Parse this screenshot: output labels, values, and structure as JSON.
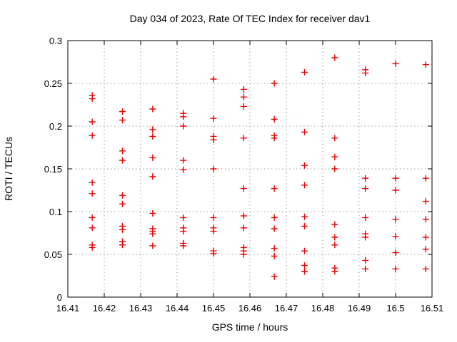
{
  "chart_data": {
    "type": "scatter",
    "title": "Day 034 of 2023, Rate Of TEC Index for receiver dav1",
    "xlabel": "GPS time / hours",
    "ylabel": "ROTI / TECUs",
    "xlim": [
      16.41,
      16.51
    ],
    "ylim": [
      0,
      0.3
    ],
    "grid": true,
    "legend": "none",
    "marker_shape": "plus",
    "marker_color": "#ee0000",
    "grid_color": "#9e9e9e",
    "axis_color": "#000000",
    "x_ticks": [
      {
        "v": 16.41,
        "label": "16.41"
      },
      {
        "v": 16.42,
        "label": "16.42"
      },
      {
        "v": 16.43,
        "label": "16.43"
      },
      {
        "v": 16.44,
        "label": "16.44"
      },
      {
        "v": 16.45,
        "label": "16.45"
      },
      {
        "v": 16.46,
        "label": "16.46"
      },
      {
        "v": 16.47,
        "label": "16.47"
      },
      {
        "v": 16.48,
        "label": "16.48"
      },
      {
        "v": 16.49,
        "label": "16.49"
      },
      {
        "v": 16.5,
        "label": "16.5"
      },
      {
        "v": 16.51,
        "label": "16.51"
      }
    ],
    "y_ticks": [
      {
        "v": 0,
        "label": "0"
      },
      {
        "v": 0.05,
        "label": "0.05"
      },
      {
        "v": 0.1,
        "label": "0.1"
      },
      {
        "v": 0.15,
        "label": "0.15"
      },
      {
        "v": 0.2,
        "label": "0.2"
      },
      {
        "v": 0.25,
        "label": "0.25"
      },
      {
        "v": 0.3,
        "label": "0.3"
      }
    ],
    "series": [
      {
        "name": "ROTI",
        "points": [
          [
            16.4167,
            0.236
          ],
          [
            16.4167,
            0.232
          ],
          [
            16.4167,
            0.205
          ],
          [
            16.4167,
            0.189
          ],
          [
            16.4167,
            0.134
          ],
          [
            16.4167,
            0.121
          ],
          [
            16.4167,
            0.093
          ],
          [
            16.4167,
            0.081
          ],
          [
            16.4167,
            0.061
          ],
          [
            16.4167,
            0.058
          ],
          [
            16.425,
            0.217
          ],
          [
            16.425,
            0.207
          ],
          [
            16.425,
            0.171
          ],
          [
            16.425,
            0.16
          ],
          [
            16.425,
            0.119
          ],
          [
            16.425,
            0.109
          ],
          [
            16.425,
            0.083
          ],
          [
            16.425,
            0.079
          ],
          [
            16.425,
            0.065
          ],
          [
            16.425,
            0.061
          ],
          [
            16.4333,
            0.22
          ],
          [
            16.4333,
            0.196
          ],
          [
            16.4333,
            0.188
          ],
          [
            16.4333,
            0.163
          ],
          [
            16.4333,
            0.141
          ],
          [
            16.4333,
            0.098
          ],
          [
            16.4333,
            0.08
          ],
          [
            16.4333,
            0.077
          ],
          [
            16.4333,
            0.074
          ],
          [
            16.4333,
            0.06
          ],
          [
            16.4417,
            0.215
          ],
          [
            16.4417,
            0.211
          ],
          [
            16.4417,
            0.2
          ],
          [
            16.4417,
            0.16
          ],
          [
            16.4417,
            0.149
          ],
          [
            16.4417,
            0.093
          ],
          [
            16.4417,
            0.081
          ],
          [
            16.4417,
            0.077
          ],
          [
            16.4417,
            0.063
          ],
          [
            16.4417,
            0.06
          ],
          [
            16.45,
            0.255
          ],
          [
            16.45,
            0.209
          ],
          [
            16.45,
            0.188
          ],
          [
            16.45,
            0.184
          ],
          [
            16.45,
            0.15
          ],
          [
            16.45,
            0.093
          ],
          [
            16.45,
            0.081
          ],
          [
            16.45,
            0.077
          ],
          [
            16.45,
            0.054
          ],
          [
            16.45,
            0.051
          ],
          [
            16.4583,
            0.243
          ],
          [
            16.4583,
            0.234
          ],
          [
            16.4583,
            0.223
          ],
          [
            16.4583,
            0.186
          ],
          [
            16.4583,
            0.127
          ],
          [
            16.4583,
            0.095
          ],
          [
            16.4583,
            0.081
          ],
          [
            16.4583,
            0.058
          ],
          [
            16.4583,
            0.054
          ],
          [
            16.4583,
            0.05
          ],
          [
            16.4667,
            0.25
          ],
          [
            16.4667,
            0.208
          ],
          [
            16.4667,
            0.189
          ],
          [
            16.4667,
            0.186
          ],
          [
            16.4667,
            0.127
          ],
          [
            16.4667,
            0.093
          ],
          [
            16.4667,
            0.08
          ],
          [
            16.4667,
            0.057
          ],
          [
            16.4667,
            0.048
          ],
          [
            16.4667,
            0.024
          ],
          [
            16.475,
            0.263
          ],
          [
            16.475,
            0.193
          ],
          [
            16.475,
            0.154
          ],
          [
            16.475,
            0.131
          ],
          [
            16.475,
            0.094
          ],
          [
            16.475,
            0.083
          ],
          [
            16.475,
            0.054
          ],
          [
            16.475,
            0.037
          ],
          [
            16.475,
            0.03
          ],
          [
            16.4833,
            0.28
          ],
          [
            16.4833,
            0.186
          ],
          [
            16.4833,
            0.164
          ],
          [
            16.4833,
            0.15
          ],
          [
            16.4833,
            0.085
          ],
          [
            16.4833,
            0.07
          ],
          [
            16.4833,
            0.061
          ],
          [
            16.4833,
            0.034
          ],
          [
            16.4833,
            0.03
          ],
          [
            16.4917,
            0.266
          ],
          [
            16.4917,
            0.262
          ],
          [
            16.4917,
            0.139
          ],
          [
            16.4917,
            0.127
          ],
          [
            16.4917,
            0.093
          ],
          [
            16.4917,
            0.074
          ],
          [
            16.4917,
            0.07
          ],
          [
            16.4917,
            0.043
          ],
          [
            16.4917,
            0.033
          ],
          [
            16.5,
            0.273
          ],
          [
            16.5,
            0.139
          ],
          [
            16.5,
            0.125
          ],
          [
            16.5,
            0.091
          ],
          [
            16.5,
            0.071
          ],
          [
            16.5,
            0.052
          ],
          [
            16.5,
            0.033
          ],
          [
            16.5083,
            0.272
          ],
          [
            16.5083,
            0.139
          ],
          [
            16.5083,
            0.112
          ],
          [
            16.5083,
            0.091
          ],
          [
            16.5083,
            0.07
          ],
          [
            16.5083,
            0.056
          ],
          [
            16.5083,
            0.033
          ]
        ]
      }
    ]
  }
}
